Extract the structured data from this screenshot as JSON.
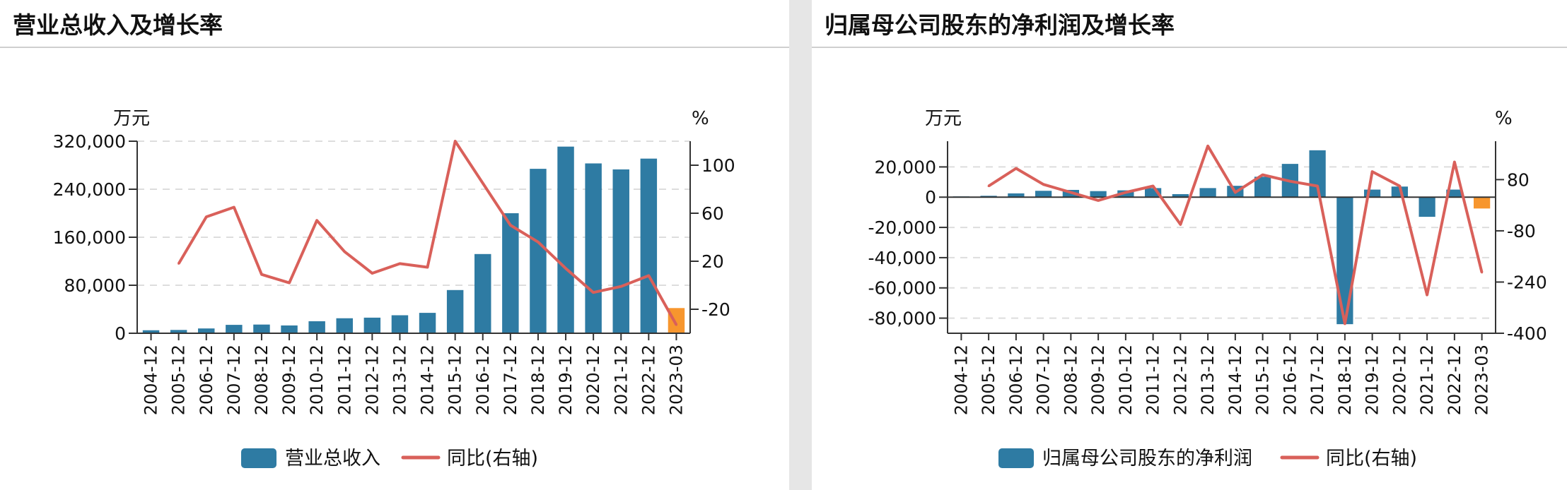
{
  "colors": {
    "bar": "#2e7ba3",
    "bar_latest": "#f7962e",
    "line": "#d9605a",
    "grid": "#dddddd",
    "axis": "#333333"
  },
  "chart_data": [
    {
      "type": "bar",
      "title": "营业总收入及增长率",
      "y_unit": "万元",
      "y2_unit": "%",
      "categories": [
        "2004-12",
        "2005-12",
        "2006-12",
        "2007-12",
        "2008-12",
        "2009-12",
        "2010-12",
        "2011-12",
        "2012-12",
        "2013-12",
        "2014-12",
        "2015-12",
        "2016-12",
        "2017-12",
        "2018-12",
        "2019-12",
        "2020-12",
        "2021-12",
        "2022-12",
        "2023-03"
      ],
      "series": [
        {
          "name": "营业总收入",
          "axis": "left",
          "values": [
            5000,
            5500,
            8000,
            14000,
            14500,
            13000,
            20000,
            25000,
            26000,
            30000,
            34000,
            72000,
            132000,
            200000,
            274000,
            311000,
            283000,
            273000,
            291000,
            42000
          ]
        },
        {
          "name": "同比(右轴)",
          "axis": "right",
          "type": "line",
          "values": [
            null,
            18,
            57,
            65,
            9,
            2,
            54,
            28,
            10,
            18,
            15,
            120,
            85,
            50,
            36,
            14,
            -6,
            -1,
            8,
            -33
          ]
        }
      ],
      "y_ticks": [
        0,
        80000,
        160000,
        240000,
        320000
      ],
      "y_tick_labels": [
        "0",
        "80,000",
        "160,000",
        "240,000",
        "320,000"
      ],
      "y_range": [
        0,
        320000
      ],
      "y2_ticks": [
        -20,
        20,
        60,
        100
      ],
      "y2_tick_labels": [
        "-20",
        "20",
        "60",
        "100"
      ],
      "y2_range": [
        -40,
        120
      ],
      "legend": [
        {
          "label": "营业总收入",
          "kind": "bar"
        },
        {
          "label": "同比(右轴)",
          "kind": "line"
        }
      ],
      "legend_position": "bottom",
      "grid": true
    },
    {
      "type": "bar",
      "title": "归属母公司股东的净利润及增长率",
      "y_unit": "万元",
      "y2_unit": "%",
      "categories": [
        "2004-12",
        "2005-12",
        "2006-12",
        "2007-12",
        "2008-12",
        "2009-12",
        "2010-12",
        "2011-12",
        "2012-12",
        "2013-12",
        "2014-12",
        "2015-12",
        "2016-12",
        "2017-12",
        "2018-12",
        "2019-12",
        "2020-12",
        "2021-12",
        "2022-12",
        "2023-03"
      ],
      "series": [
        {
          "name": "归属母公司股东的净利润",
          "axis": "left",
          "values": [
            500,
            900,
            2500,
            4200,
            4800,
            4000,
            4500,
            6000,
            2000,
            6000,
            7500,
            13500,
            22000,
            31000,
            -84000,
            5000,
            7000,
            -13000,
            5000,
            -7500
          ]
        },
        {
          "name": "同比(右轴)",
          "axis": "right",
          "type": "line",
          "values": [
            null,
            60,
            115,
            65,
            40,
            15,
            40,
            60,
            -60,
            185,
            40,
            95,
            75,
            60,
            -370,
            105,
            60,
            -280,
            135,
            -210
          ]
        }
      ],
      "y_ticks": [
        -80000,
        -60000,
        -40000,
        -20000,
        0,
        20000
      ],
      "y_tick_labels": [
        "-80,000",
        "-60,000",
        "-40,000",
        "-20,000",
        "0",
        "20,000"
      ],
      "y_range": [
        -90000,
        37000
      ],
      "y2_ticks": [
        -400,
        -240,
        -80,
        80
      ],
      "y2_tick_labels": [
        "-400",
        "-240",
        "-80",
        "80"
      ],
      "y2_range": [
        -400,
        200
      ],
      "legend": [
        {
          "label": "归属母公司股东的净利润",
          "kind": "bar"
        },
        {
          "label": "同比(右轴)",
          "kind": "line"
        }
      ],
      "legend_position": "bottom",
      "grid": true
    }
  ]
}
